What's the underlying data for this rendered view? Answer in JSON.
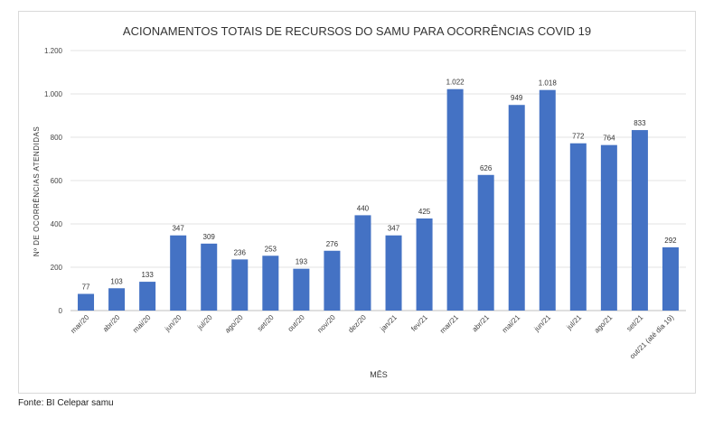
{
  "source": "Fonte: BI Celepar samu",
  "chart_data": {
    "type": "bar",
    "title": "ACIONAMENTOS TOTAIS DE RECURSOS DO SAMU PARA OCORRÊNCIAS COVID 19",
    "xlabel": "MÊS",
    "ylabel": "Nº DE OCORRÊNCIAS ATENDIDAS",
    "ylim": [
      0,
      1200
    ],
    "yticks": [
      0,
      200,
      400,
      600,
      800,
      1000,
      1200
    ],
    "ytick_labels": [
      "0",
      "200",
      "400",
      "600",
      "800",
      "1.000",
      "1.200"
    ],
    "grid": true,
    "bar_color": "#4472c4",
    "categories": [
      "mar/20",
      "abr/20",
      "mai/20",
      "jun/20",
      "jul/20",
      "ago/20",
      "set/20",
      "out/20",
      "nov/20",
      "dez/20",
      "jan/21",
      "fev/21",
      "mar/21",
      "abr/21",
      "mai/21",
      "jun/21",
      "jul/21",
      "ago/21",
      "set/21",
      "out/21 (até dia 19)"
    ],
    "values": [
      77,
      103,
      133,
      347,
      309,
      236,
      253,
      193,
      276,
      440,
      347,
      425,
      1022,
      626,
      949,
      1018,
      772,
      764,
      833,
      292
    ],
    "value_labels": [
      "77",
      "103",
      "133",
      "347",
      "309",
      "236",
      "253",
      "193",
      "276",
      "440",
      "347",
      "425",
      "1.022",
      "626",
      "949",
      "1.018",
      "772",
      "764",
      "833",
      "292"
    ]
  }
}
